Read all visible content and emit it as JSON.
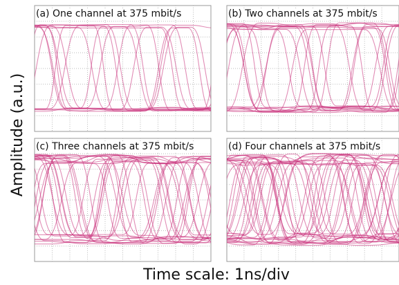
{
  "y_axis_label": "Amplitude (a.u.)",
  "x_axis_label": "Time scale: 1ns/div",
  "panels": [
    {
      "title": "(a) One channel at 375 mbit/s"
    },
    {
      "title": "(b) Two channels at 375 mbit/s"
    },
    {
      "title": "(c) Three channels at 375 mbit/s"
    },
    {
      "title": "(d) Four channels at 375 mbit/s"
    }
  ]
}
